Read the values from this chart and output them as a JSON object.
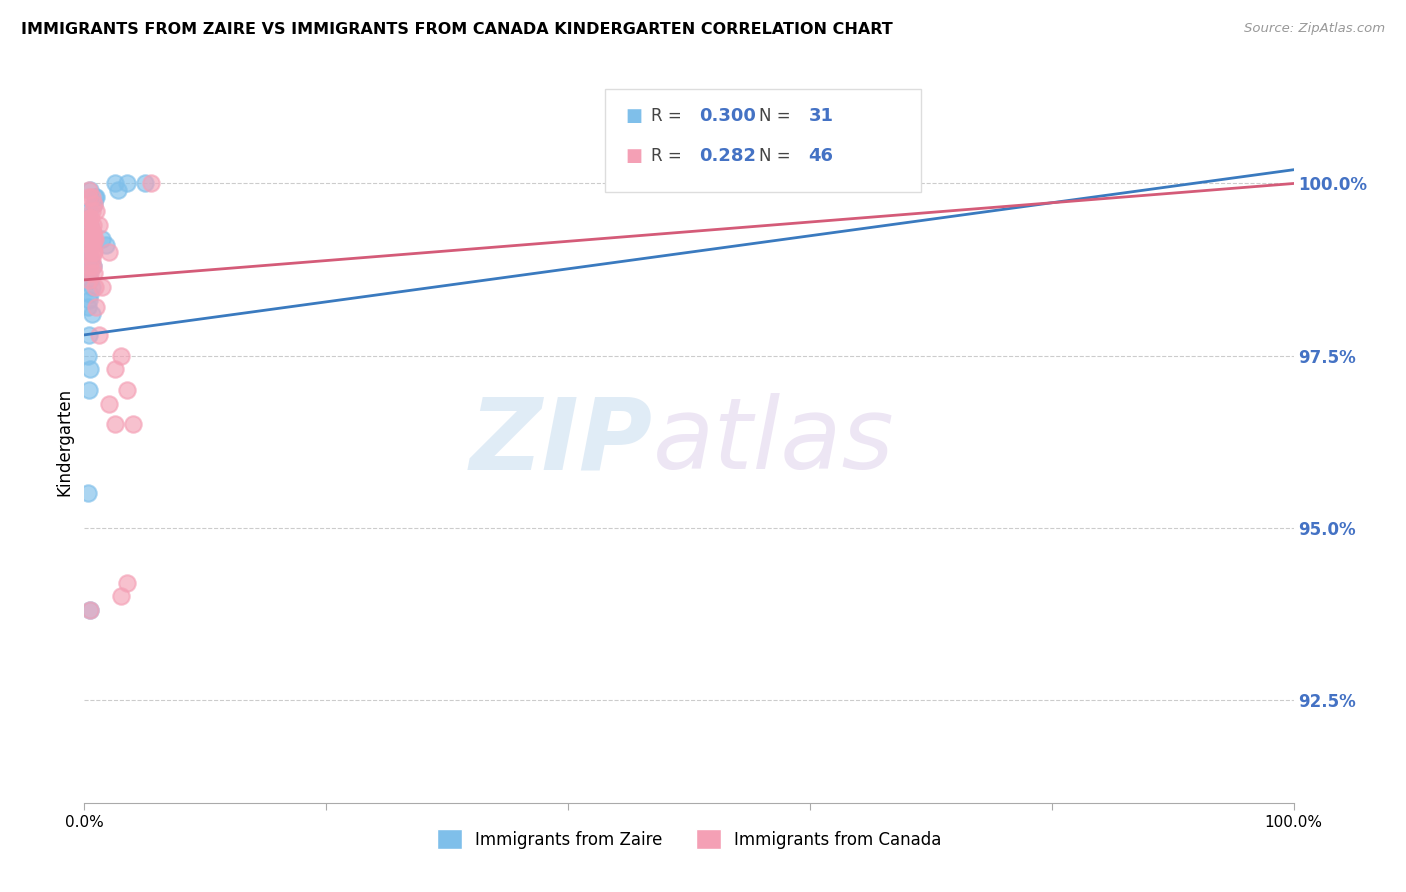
{
  "title": "IMMIGRANTS FROM ZAIRE VS IMMIGRANTS FROM CANADA KINDERGARTEN CORRELATION CHART",
  "source": "Source: ZipAtlas.com",
  "ylabel": "Kindergarten",
  "ylabel_right_ticks": [
    92.5,
    95.0,
    97.5,
    100.0
  ],
  "xmin": 0.0,
  "xmax": 100.0,
  "ymin": 91.0,
  "ymax": 101.5,
  "watermark_zip": "ZIP",
  "watermark_atlas": "atlas",
  "zaire_color": "#7fbfea",
  "canada_color": "#f4a0b5",
  "zaire_line_color": "#3a7abf",
  "canada_line_color": "#d45b78",
  "R_zaire": 0.3,
  "N_zaire": 31,
  "R_canada": 0.282,
  "N_canada": 46,
  "zaire_label": "Immigrants from Zaire",
  "canada_label": "Immigrants from Canada",
  "zaire_x": [
    0.5,
    1.0,
    0.8,
    0.9,
    0.4,
    0.3,
    0.5,
    0.6,
    0.4,
    0.3,
    0.5,
    0.7,
    0.4,
    0.5,
    0.6,
    0.5,
    0.4,
    0.3,
    0.6,
    0.4,
    0.3,
    0.5,
    2.5,
    2.8,
    3.5,
    5.0,
    0.4,
    1.5,
    1.8,
    0.3,
    0.5
  ],
  "zaire_y": [
    99.9,
    99.8,
    99.7,
    99.8,
    99.6,
    99.5,
    99.4,
    99.3,
    99.2,
    99.0,
    98.9,
    98.8,
    98.7,
    98.6,
    98.5,
    98.4,
    98.3,
    98.2,
    98.1,
    97.8,
    97.5,
    97.3,
    100.0,
    99.9,
    100.0,
    100.0,
    97.0,
    99.2,
    99.1,
    95.5,
    93.8
  ],
  "canada_x": [
    0.4,
    0.6,
    0.8,
    1.0,
    0.5,
    1.2,
    0.7,
    0.9,
    0.4,
    0.6,
    0.5,
    0.7,
    0.6,
    0.8,
    0.5,
    0.4,
    0.6,
    0.7,
    0.5,
    0.4,
    2.0,
    1.5,
    0.5,
    0.6,
    0.7,
    0.8,
    0.5,
    0.6,
    0.7,
    0.8,
    0.9,
    0.5,
    0.6,
    0.7,
    3.0,
    2.5,
    3.5,
    2.0,
    2.5,
    3.0,
    3.5,
    4.0,
    1.0,
    5.5,
    1.2,
    0.5
  ],
  "canada_y": [
    99.9,
    99.8,
    99.7,
    99.6,
    99.5,
    99.4,
    99.3,
    99.2,
    99.8,
    99.6,
    99.5,
    99.4,
    99.3,
    99.2,
    99.1,
    99.0,
    98.9,
    98.8,
    98.7,
    98.6,
    99.0,
    98.5,
    99.5,
    99.3,
    99.1,
    99.0,
    98.8,
    99.2,
    99.0,
    98.7,
    98.5,
    99.4,
    99.2,
    99.0,
    97.5,
    97.3,
    97.0,
    96.8,
    96.5,
    94.0,
    94.2,
    96.5,
    98.2,
    100.0,
    97.8,
    93.8
  ],
  "background_color": "#ffffff",
  "grid_color": "#cccccc"
}
